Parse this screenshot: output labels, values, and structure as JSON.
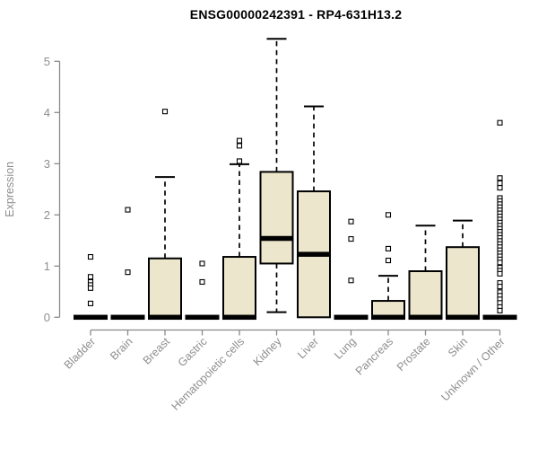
{
  "header": {
    "title": "ENSG00000242391 - RP4-631H13.2"
  },
  "chart_data": {
    "type": "boxplot",
    "title": "ENSG00000242391 - RP4-631H13.2",
    "xlabel": "",
    "ylabel": "Expression",
    "ylim": [
      0,
      5
    ],
    "yticks": [
      0,
      1,
      2,
      3,
      4,
      5
    ],
    "grid": false,
    "legend": false,
    "categories": [
      "Bladder",
      "Brain",
      "Breast",
      "Gastric",
      "Hematopoietic cells",
      "Kidney",
      "Liver",
      "Lung",
      "Pancreas",
      "Prostate",
      "Skin",
      "Unknown / Other"
    ],
    "boxes": [
      {
        "category": "Bladder",
        "q1": 0,
        "median": 0,
        "q3": 0,
        "whisker_low": 0,
        "whisker_high": 0,
        "outliers": [
          1.18,
          0.79,
          0.69,
          0.63,
          0.57,
          0.27
        ]
      },
      {
        "category": "Brain",
        "q1": 0,
        "median": 0,
        "q3": 0,
        "whisker_low": 0,
        "whisker_high": 0,
        "outliers": [
          2.1,
          0.88
        ]
      },
      {
        "category": "Breast",
        "q1": 0,
        "median": 0,
        "q3": 1.15,
        "whisker_low": 0,
        "whisker_high": 2.74,
        "outliers": [
          4.02
        ]
      },
      {
        "category": "Gastric",
        "q1": 0,
        "median": 0,
        "q3": 0,
        "whisker_low": 0,
        "whisker_high": 0,
        "outliers": [
          1.05,
          0.69
        ]
      },
      {
        "category": "Hematopoietic cells",
        "q1": 0,
        "median": 0,
        "q3": 1.18,
        "whisker_low": 0,
        "whisker_high": 2.99,
        "outliers": [
          3.45,
          3.35,
          3.05
        ]
      },
      {
        "category": "Kidney",
        "q1": 1.05,
        "median": 1.54,
        "q3": 2.84,
        "whisker_low": 0.1,
        "whisker_high": 5.44,
        "outliers": []
      },
      {
        "category": "Liver",
        "q1": 0,
        "median": 1.23,
        "q3": 2.46,
        "whisker_low": 0,
        "whisker_high": 4.12,
        "outliers": []
      },
      {
        "category": "Lung",
        "q1": 0,
        "median": 0,
        "q3": 0,
        "whisker_low": 0,
        "whisker_high": 0,
        "outliers": [
          1.87,
          1.53,
          0.72
        ]
      },
      {
        "category": "Pancreas",
        "q1": 0,
        "median": 0,
        "q3": 0.32,
        "whisker_low": 0,
        "whisker_high": 0.81,
        "outliers": [
          2.0,
          1.34,
          1.11
        ]
      },
      {
        "category": "Prostate",
        "q1": 0,
        "median": 0,
        "q3": 0.9,
        "whisker_low": 0,
        "whisker_high": 1.79,
        "outliers": []
      },
      {
        "category": "Skin",
        "q1": 0,
        "median": 0,
        "q3": 1.37,
        "whisker_low": 0,
        "whisker_high": 1.89,
        "outliers": []
      },
      {
        "category": "Unknown / Other",
        "q1": 0,
        "median": 0,
        "q3": 0,
        "whisker_low": 0,
        "whisker_high": 0,
        "outliers": [
          3.8,
          2.72,
          2.62,
          2.53,
          2.33,
          2.27,
          2.21,
          2.15,
          2.09,
          2.03,
          1.97,
          1.91,
          1.85,
          1.79,
          1.73,
          1.67,
          1.61,
          1.55,
          1.49,
          1.43,
          1.37,
          1.31,
          1.25,
          1.19,
          1.13,
          1.07,
          0.97,
          0.91,
          0.85,
          0.67,
          0.6,
          0.49,
          0.42,
          0.35,
          0.28,
          0.2,
          0.13
        ]
      }
    ],
    "colors": {
      "background": "#ffffff",
      "box_fill": "#ece6cc",
      "box_border": "#000000",
      "median": "#000000",
      "whisker": "#000000",
      "outlier_fill": "#ffffff",
      "outlier_border": "#000000",
      "axis_line": "#8a8a8a",
      "tick_label": "#8e8e8e",
      "title": "#000000"
    }
  }
}
